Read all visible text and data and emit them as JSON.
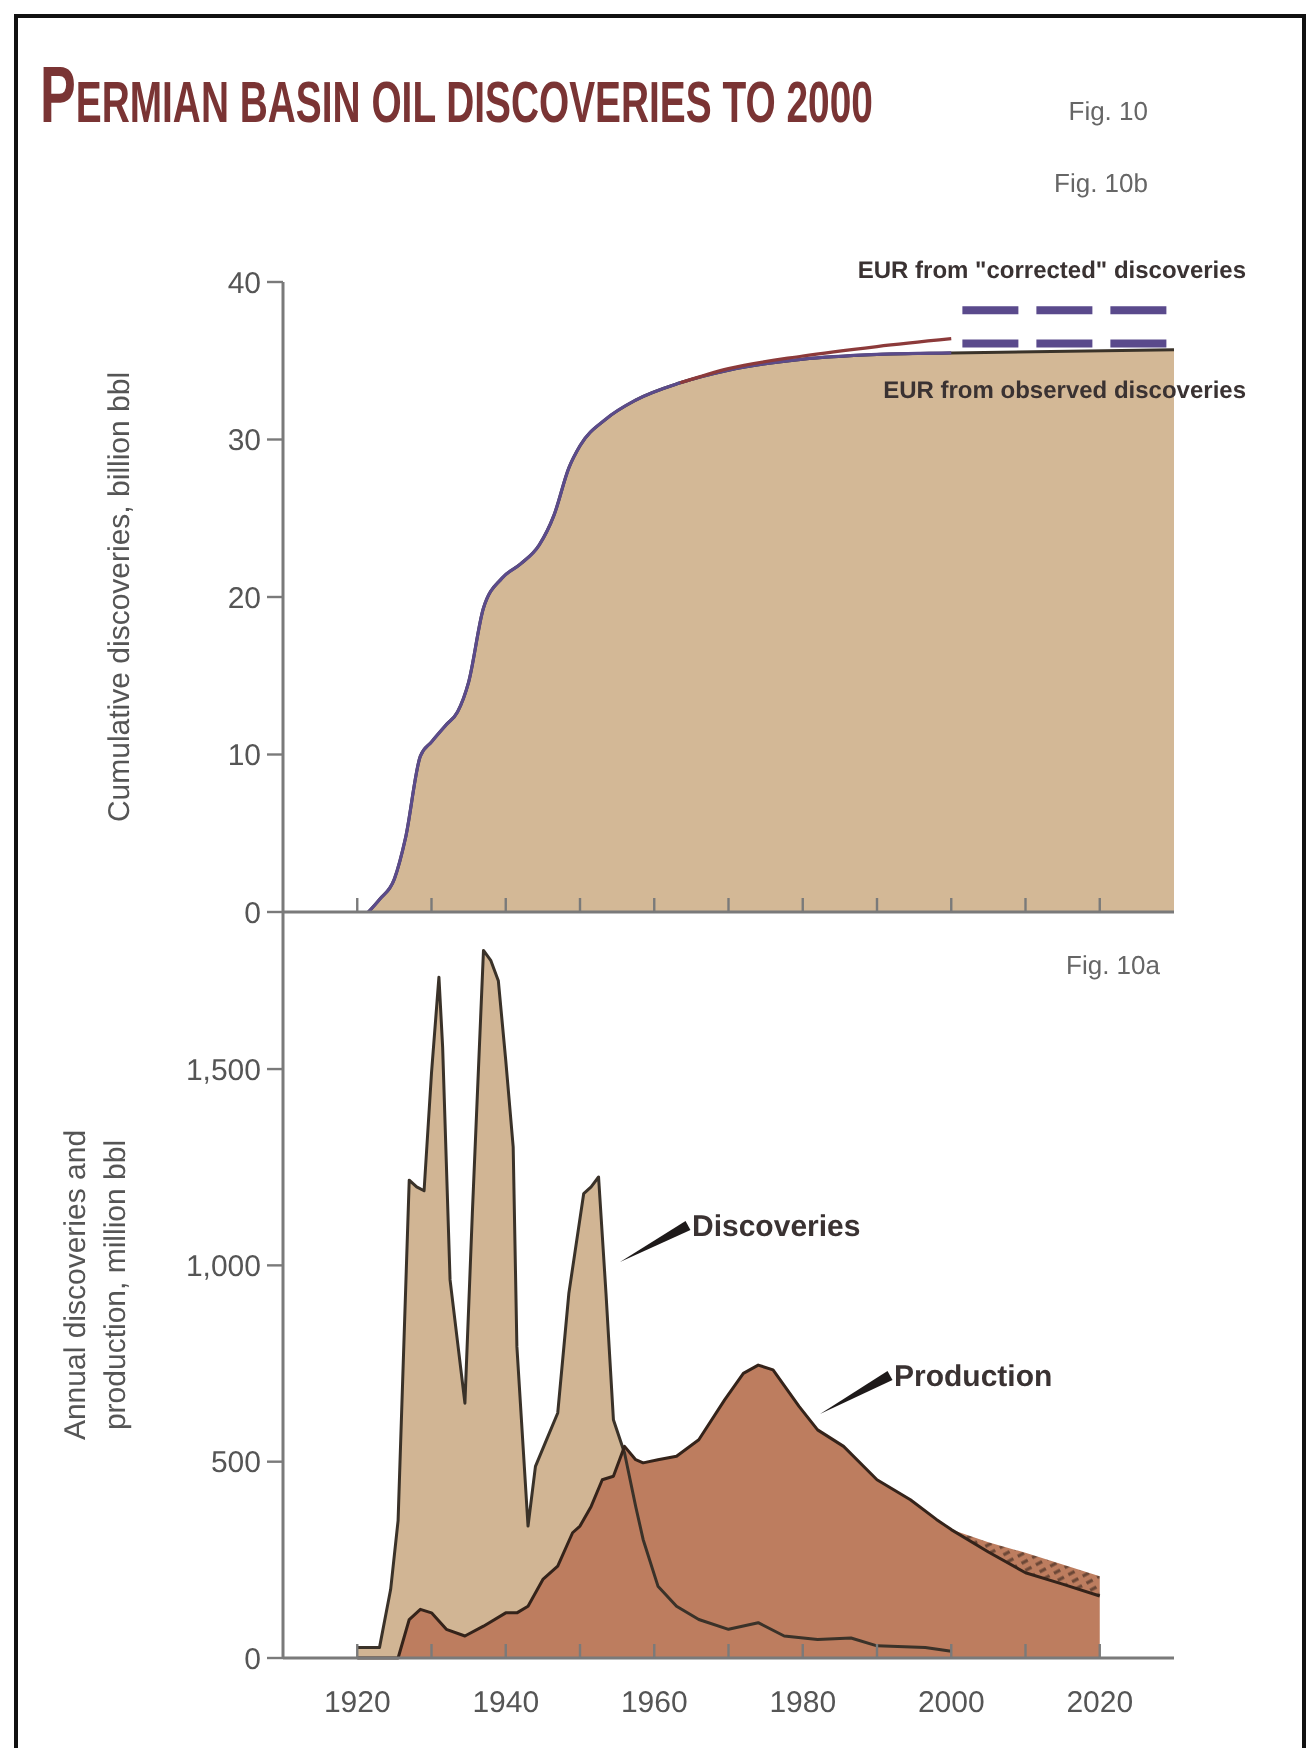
{
  "chart_data": [
    {
      "type": "area",
      "title": "PERMIAN BASIN OIL DISCOVERIES TO 2000",
      "ylabel": "Cumulative discoveries, billion bbl",
      "annotations": [
        "Fig. 10",
        "Fig. 10b"
      ],
      "xlim": [
        1910,
        2030
      ],
      "xticks": [
        1920,
        1930,
        1940,
        1950,
        1960,
        1970,
        1980,
        1990,
        2000,
        2010,
        2020
      ],
      "ylim": [
        0,
        40
      ],
      "yticks": [
        0,
        10,
        20,
        30,
        40
      ],
      "tick_labels": "y",
      "series": [
        {
          "type": "area",
          "color": "#d3b896",
          "x": [
            1921.5,
            1923,
            1925,
            1926.5,
            1928.5,
            1930,
            1932,
            1933.5,
            1935,
            1937,
            1939.5,
            1942,
            1944.5,
            1946.5,
            1948.5,
            1950,
            1953.5,
            1957.5,
            1963.5,
            1970,
            1980,
            1990,
            2000,
            2030
          ],
          "values": [
            0,
            0.8,
            2.1,
            4.7,
            9.9,
            10.8,
            11.9,
            12.7,
            14.6,
            19.3,
            21.2,
            22.1,
            23.3,
            25.2,
            28.2,
            29.6,
            31.3,
            32.5,
            33.6,
            34.4,
            35.1,
            35.4,
            35.5,
            35.7
          ]
        },
        {
          "type": "line",
          "color": "#5b4b8a",
          "x": [
            1921.5,
            1923,
            1925,
            1926.5,
            1928.5,
            1930,
            1932,
            1933.5,
            1935,
            1937,
            1939.5,
            1942,
            1944.5,
            1946.5,
            1948.5,
            1950,
            1953.5,
            1957.5,
            1963.5,
            1970,
            1980,
            1990,
            2000
          ],
          "values": [
            0,
            0.8,
            2.1,
            4.7,
            9.9,
            10.8,
            11.9,
            12.7,
            14.6,
            19.3,
            21.2,
            22.1,
            23.3,
            25.2,
            28.2,
            29.6,
            31.3,
            32.5,
            33.6,
            34.4,
            35.1,
            35.4,
            35.5
          ]
        },
        {
          "type": "line",
          "color": "#8c3a3a",
          "x": [
            1963.5,
            1970,
            1980,
            1990,
            2000
          ],
          "values": [
            33.6,
            34.5,
            35.3,
            35.9,
            36.4
          ]
        },
        {
          "type": "line",
          "name": "EUR from \"corrected\" discoveries",
          "color": "#5a4a8c",
          "line_style": "dashed",
          "x": [
            2001.5,
            2029
          ],
          "values": [
            38.2,
            38.2
          ]
        },
        {
          "type": "line",
          "name": "EUR from observed discoveries",
          "color": "#5a4a8c",
          "line_style": "dashed",
          "x": [
            2001.5,
            2029
          ],
          "values": [
            36.1,
            36.1
          ]
        }
      ]
    },
    {
      "type": "area",
      "ylabel": "Annual discoveries and production, million bbl",
      "annotations": [
        "Fig. 10a"
      ],
      "xlim": [
        1910,
        2030
      ],
      "xticks": [
        1920,
        {
          "value": 1930,
          "label": null
        },
        1940,
        {
          "value": 1950,
          "label": null
        },
        1960,
        {
          "value": 1970,
          "label": null
        },
        1980,
        {
          "value": 1990,
          "label": null
        },
        2000,
        {
          "value": 2010,
          "label": null
        },
        2020
      ],
      "ylim": [
        0,
        1900
      ],
      "yticks": [
        0,
        500,
        {
          "value": 1000,
          "label": "1,000"
        },
        {
          "value": 1500,
          "label": "1,500"
        }
      ],
      "series": [
        {
          "type": "area",
          "name": "Discoveries",
          "color": "#d1b594",
          "x": [
            1920,
            1923,
            1924.5,
            1925.5,
            1927,
            1928,
            1929,
            1930,
            1931,
            1931.5,
            1932.5,
            1934.5,
            1935.5,
            1937,
            1938,
            1939,
            1940,
            1941,
            1941.5,
            1943,
            1944,
            1945.5,
            1947,
            1948.5,
            1950.5,
            1951.5,
            1952.5,
            1953.5,
            1954.5,
            1956,
            1957.5,
            1958.5,
            1960.5,
            1963,
            1966,
            1970,
            1974,
            1977.5,
            1982,
            1986.5,
            1990,
            1996.5,
            2000
          ],
          "values": [
            27,
            27,
            175,
            350,
            1217,
            1200,
            1190,
            1490,
            1734,
            1556,
            963,
            649,
            1132,
            1802,
            1776,
            1725,
            1522,
            1302,
            793,
            336,
            488,
            556,
            624,
            929,
            1183,
            1200,
            1225,
            929,
            607,
            522,
            386,
            302,
            183,
            132,
            98,
            73,
            90,
            56,
            47,
            51,
            31,
            27,
            17
          ]
        },
        {
          "type": "area",
          "name": "Production",
          "color": "#bd7d5f",
          "x": [
            1920,
            1925.5,
            1927,
            1928.5,
            1930,
            1932,
            1934.5,
            1937,
            1940,
            1941.5,
            1943,
            1945,
            1947,
            1949,
            1950,
            1951.5,
            1953,
            1954.5,
            1956,
            1957.5,
            1958.5,
            1960.5,
            1963,
            1966,
            1969.5,
            1972,
            1974,
            1976,
            1979.5,
            1982,
            1985.5,
            1990,
            1994.5,
            1998,
            2000,
            2005,
            2010,
            2015,
            2020
          ],
          "values": [
            0,
            0,
            98,
            124,
            115,
            73,
            56,
            81,
            115,
            115,
            132,
            200,
            234,
            319,
            336,
            386,
            454,
            463,
            539,
            505,
            497,
            505,
            514,
            556,
            658,
            725,
            746,
            734,
            641,
            581,
            539,
            454,
            403,
            353,
            327,
            270,
            217,
            188,
            158
          ],
          "lower": [
            null,
            null,
            null,
            null,
            null,
            null,
            null,
            null,
            null,
            null,
            null,
            null,
            null,
            null,
            null,
            null,
            null,
            null,
            null,
            null,
            null,
            null,
            null,
            null,
            null,
            null,
            null,
            null,
            null,
            null,
            null,
            null,
            null,
            null,
            327,
            270,
            217,
            188,
            158
          ],
          "upper": [
            null,
            null,
            null,
            null,
            null,
            null,
            null,
            null,
            null,
            null,
            null,
            null,
            null,
            null,
            null,
            null,
            null,
            null,
            null,
            null,
            null,
            null,
            null,
            null,
            null,
            null,
            null,
            null,
            null,
            null,
            null,
            null,
            null,
            null,
            327,
            295,
            268,
            238,
            208
          ]
        }
      ]
    }
  ]
}
